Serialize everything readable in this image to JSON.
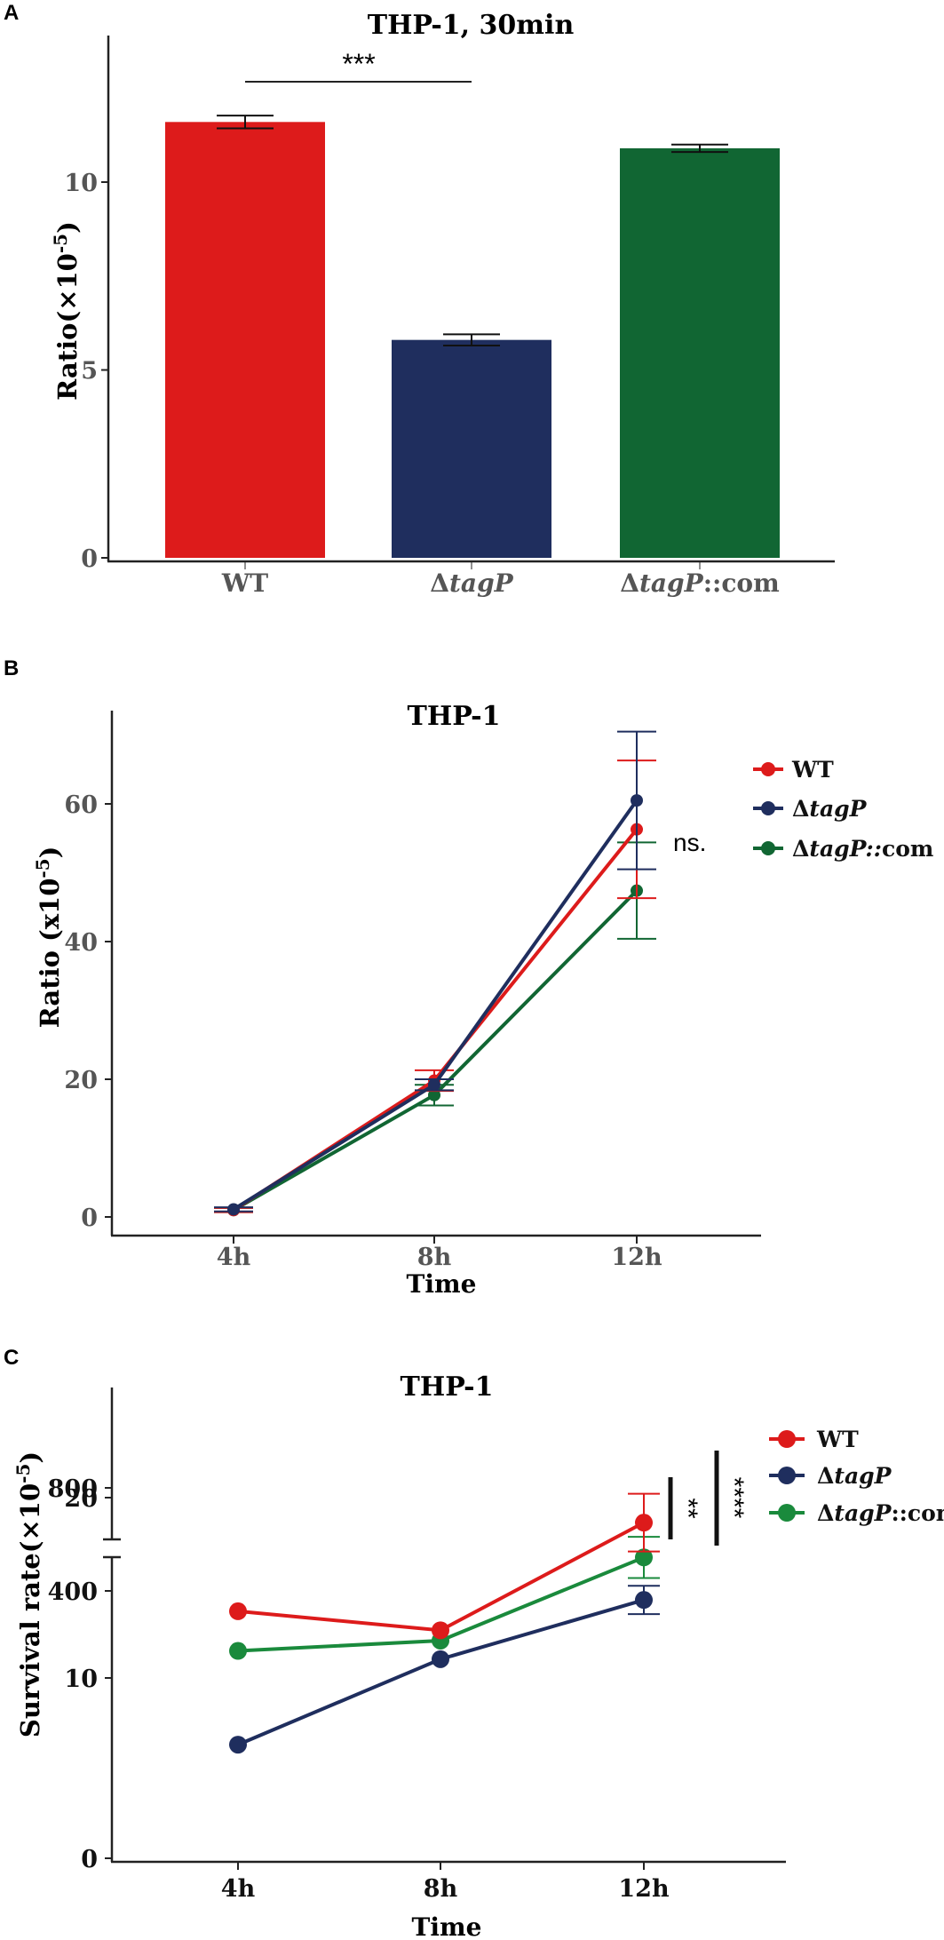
{
  "colors": {
    "wt": "#dd1b1b",
    "tagp": "#1f2e5e",
    "com": "#116633",
    "com_c": "#1a8a3c",
    "axis": "#222222"
  },
  "panels": {
    "a": "A",
    "b": "B",
    "c": "C"
  },
  "chart_data": [
    {
      "panel": "A",
      "type": "bar",
      "title": "THP-1, 30min",
      "xlabel": "",
      "ylabel_main": "Ratio(×10",
      "ylabel_exp": "-5",
      "ylabel_close": ")",
      "ylim": [
        0,
        13.5
      ],
      "yticks": [
        0,
        5,
        10
      ],
      "categories": [
        "WT",
        "ΔtagP",
        "ΔtagP::com"
      ],
      "category_parts": [
        {
          "pre": "",
          "ital": "",
          "post": "WT"
        },
        {
          "pre": "Δ",
          "ital": "tagP",
          "post": ""
        },
        {
          "pre": "Δ",
          "ital": "tagP",
          "post": "::com"
        }
      ],
      "values": [
        11.6,
        5.8,
        10.9
      ],
      "errors": [
        0.17,
        0.15,
        0.1
      ],
      "significance": {
        "between": [
          "WT",
          "ΔtagP"
        ],
        "label": "***"
      }
    },
    {
      "panel": "B",
      "type": "line",
      "title": "THP-1",
      "xlabel": "Time",
      "ylabel_main": "Ratio (x10",
      "ylabel_exp": "-5",
      "ylabel_close": ")",
      "x": [
        "4h",
        "8h",
        "12h"
      ],
      "ylim": [
        0,
        72
      ],
      "yticks": [
        0,
        20,
        40,
        60
      ],
      "series": [
        {
          "name": "WT",
          "pre": "",
          "ital": "",
          "post": "WT",
          "values": [
            1.0,
            19.8,
            56.3
          ],
          "errors": [
            0.3,
            1.5,
            10.0
          ]
        },
        {
          "name": "ΔtagP",
          "pre": "Δ",
          "ital": "tagP",
          "post": "",
          "values": [
            1.1,
            19.2,
            60.5
          ],
          "errors": [
            0.3,
            0.8,
            10.0
          ]
        },
        {
          "name": "ΔtagP::com",
          "pre": "Δ",
          "ital": "tagP::",
          "post": "com",
          "values": [
            1.0,
            17.7,
            47.4
          ],
          "errors": [
            0.3,
            1.5,
            7.0
          ]
        }
      ],
      "annotation": "ns."
    },
    {
      "panel": "C",
      "type": "line",
      "title": "THP-1",
      "xlabel": "Time",
      "ylabel_main": "Survival rate(×10",
      "ylabel_exp": "-5",
      "ylabel_close": ")",
      "x": [
        "4h",
        "8h",
        "12h"
      ],
      "y_broken": true,
      "ylim_lower": [
        0,
        20
      ],
      "yticks_lower": [
        0,
        10,
        20
      ],
      "ylim_upper": [
        0,
        900
      ],
      "yticks_upper": [
        400,
        800
      ],
      "series": [
        {
          "name": "WT",
          "pre": "",
          "ital": "",
          "post": "WT",
          "values": [
            13.7,
            247,
            665
          ],
          "errors": [
            0,
            0,
            112
          ]
        },
        {
          "name": "ΔtagP",
          "pre": "Δ",
          "ital": "tagP",
          "post": "",
          "values": [
            6.3,
            135,
            365
          ],
          "errors": [
            0,
            0,
            55
          ]
        },
        {
          "name": "ΔtagP::com",
          "pre": "Δ",
          "ital": "tagP",
          "post": "::com",
          "values": [
            11.5,
            207,
            530
          ],
          "errors": [
            0,
            0,
            80
          ]
        }
      ],
      "significance": [
        {
          "between": [
            "ΔtagP::com",
            "ΔtagP"
          ],
          "label": "**"
        },
        {
          "between": [
            "WT",
            "ΔtagP"
          ],
          "label": "****"
        }
      ]
    }
  ]
}
